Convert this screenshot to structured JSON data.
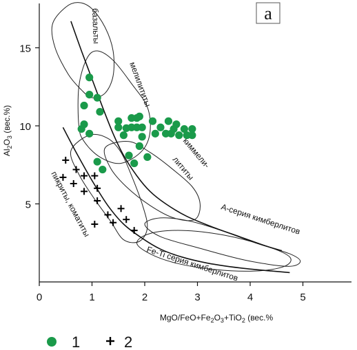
{
  "chart_data": {
    "type": "scatter",
    "panel_label": "а",
    "ylabel_parts": [
      "Al",
      "2",
      "O",
      "3",
      " (вес.%)"
    ],
    "xlabel_parts": [
      "MgO/FeO+Fe",
      "2",
      "O",
      "3",
      "+TiO",
      "2",
      " (вес.%"
    ],
    "xlim": [
      0,
      5.5
    ],
    "ylim": [
      0,
      17.8
    ],
    "xticks": [
      0,
      1,
      2,
      3,
      4,
      5
    ],
    "yticks": [
      5,
      10,
      15
    ],
    "field_labels": [
      "базальты",
      "мелилититы",
      "киммели-",
      "лититы",
      "А-серия кимберлитов",
      "Fe-Ti серия кимберлитов",
      "пикриты, коматиты"
    ],
    "series": [
      {
        "name": "1",
        "marker": "circle",
        "color": "#1a9a4a",
        "points": [
          [
            0.95,
            13.1
          ],
          [
            0.95,
            12
          ],
          [
            0.85,
            11.3
          ],
          [
            1.1,
            11.8
          ],
          [
            1.15,
            10.9
          ],
          [
            0.85,
            10.1
          ],
          [
            0.8,
            9.8
          ],
          [
            0.95,
            9.5
          ],
          [
            1.1,
            7.7
          ],
          [
            1.2,
            7.2
          ],
          [
            1.5,
            10.3
          ],
          [
            1.5,
            9.9
          ],
          [
            1.6,
            9.4
          ],
          [
            1.65,
            9.85
          ],
          [
            1.75,
            10.5
          ],
          [
            1.75,
            9.9
          ],
          [
            1.85,
            10.5
          ],
          [
            1.85,
            9.9
          ],
          [
            1.9,
            10.6
          ],
          [
            1.95,
            9.9
          ],
          [
            1.95,
            9.3
          ],
          [
            1.9,
            8.7
          ],
          [
            1.7,
            8.1
          ],
          [
            1.8,
            7.6
          ],
          [
            2.05,
            8
          ],
          [
            2.15,
            10.3
          ],
          [
            2.2,
            9.5
          ],
          [
            2.3,
            9.9
          ],
          [
            2.4,
            9.5
          ],
          [
            2.45,
            10.3
          ],
          [
            2.5,
            9.5
          ],
          [
            2.55,
            9.8
          ],
          [
            2.6,
            10.1
          ],
          [
            2.65,
            9.4
          ],
          [
            2.75,
            9.8
          ],
          [
            2.8,
            9.4
          ],
          [
            2.9,
            9.8
          ],
          [
            2.9,
            9.4
          ]
        ]
      },
      {
        "name": "2",
        "marker": "plus",
        "color": "#000000",
        "points": [
          [
            0.5,
            7.8
          ],
          [
            0.45,
            6.7
          ],
          [
            0.7,
            7.2
          ],
          [
            0.65,
            6.3
          ],
          [
            0.85,
            6.8
          ],
          [
            0.85,
            5.8
          ],
          [
            1.05,
            6.8
          ],
          [
            1.1,
            6.0
          ],
          [
            1.1,
            5.2
          ],
          [
            1.3,
            4.3
          ],
          [
            1.55,
            4.7
          ],
          [
            1.65,
            4.0
          ],
          [
            1.05,
            3.7
          ],
          [
            1.4,
            3.8
          ],
          [
            1.8,
            3.3
          ]
        ]
      }
    ],
    "boundary_lines": [
      [
        [
          0.6,
          16.7
        ],
        [
          0.8,
          14.8
        ],
        [
          1.0,
          13.0
        ],
        [
          1.2,
          11.2
        ],
        [
          1.4,
          9.5
        ],
        [
          1.6,
          8.1
        ],
        [
          1.85,
          6.8
        ],
        [
          2.1,
          5.8
        ],
        [
          2.4,
          5.0
        ],
        [
          2.8,
          4.2
        ],
        [
          3.3,
          3.5
        ],
        [
          3.8,
          2.9
        ],
        [
          4.3,
          2.3
        ],
        [
          4.6,
          2.0
        ]
      ],
      [
        [
          0.45,
          9.9
        ],
        [
          0.7,
          8.3
        ],
        [
          1.0,
          6.5
        ],
        [
          1.3,
          4.9
        ],
        [
          1.6,
          3.7
        ],
        [
          1.95,
          2.8
        ],
        [
          2.3,
          2.1
        ],
        [
          2.7,
          1.6
        ],
        [
          3.2,
          1.2
        ],
        [
          3.8,
          0.9
        ],
        [
          4.4,
          0.7
        ],
        [
          4.75,
          0.6
        ]
      ]
    ],
    "fields": [
      {
        "label": "базальты",
        "outline": [
          [
            0.3,
            15.0
          ],
          [
            0.25,
            16.5
          ],
          [
            0.5,
            17.6
          ],
          [
            0.75,
            17.9
          ],
          [
            1.0,
            17.5
          ],
          [
            1.25,
            16.3
          ],
          [
            1.4,
            14.8
          ],
          [
            1.4,
            13.2
          ],
          [
            1.25,
            12.1
          ],
          [
            1.0,
            11.8
          ],
          [
            0.8,
            12.3
          ],
          [
            0.55,
            13.3
          ]
        ]
      },
      {
        "label": "мелилититы",
        "outline": [
          [
            0.75,
            10.0
          ],
          [
            0.75,
            12.5
          ],
          [
            0.9,
            14.3
          ],
          [
            1.1,
            14.8
          ],
          [
            1.4,
            14.2
          ],
          [
            1.75,
            12.7
          ],
          [
            2.05,
            11.2
          ],
          [
            2.1,
            9.6
          ],
          [
            1.95,
            8.4
          ],
          [
            1.55,
            7.6
          ],
          [
            1.15,
            8.0
          ],
          [
            0.85,
            9.0
          ]
        ]
      },
      {
        "label": "киммели-лититы",
        "outline": [
          [
            1.25,
            8.6
          ],
          [
            1.7,
            9.0
          ],
          [
            2.1,
            8.3
          ],
          [
            2.5,
            7.3
          ],
          [
            2.9,
            6.1
          ],
          [
            3.05,
            5.0
          ],
          [
            2.95,
            4.0
          ],
          [
            2.55,
            4.1
          ],
          [
            2.1,
            4.9
          ],
          [
            1.65,
            6.1
          ],
          [
            1.35,
            7.3
          ]
        ]
      },
      {
        "label": "А-серия кимберлитов",
        "outline": [
          [
            2.0,
            3.7
          ],
          [
            2.3,
            4.1
          ],
          [
            2.85,
            3.9
          ],
          [
            3.45,
            3.3
          ],
          [
            4.1,
            2.5
          ],
          [
            4.75,
            1.8
          ],
          [
            4.95,
            1.3
          ],
          [
            4.7,
            1.0
          ],
          [
            3.9,
            1.4
          ],
          [
            3.0,
            2.2
          ],
          [
            2.3,
            2.9
          ]
        ]
      },
      {
        "label": "Fe-Ti серия кимберлитов",
        "outline": [
          [
            1.85,
            2.5
          ],
          [
            2.1,
            3.1
          ],
          [
            2.7,
            3.3
          ],
          [
            3.5,
            3.0
          ],
          [
            4.3,
            2.3
          ],
          [
            4.75,
            1.6
          ],
          [
            4.65,
            1.0
          ],
          [
            4.1,
            0.7
          ],
          [
            3.3,
            0.8
          ],
          [
            2.6,
            1.2
          ],
          [
            2.1,
            1.8
          ]
        ]
      },
      {
        "label": "пикриты, коматиты",
        "outline": [
          [
            0.6,
            8.4
          ],
          [
            0.95,
            9.4
          ],
          [
            1.3,
            9.2
          ],
          [
            1.55,
            8.3
          ],
          [
            1.75,
            6.8
          ],
          [
            1.95,
            5.0
          ],
          [
            2.05,
            3.5
          ],
          [
            1.9,
            2.6
          ],
          [
            1.6,
            2.7
          ],
          [
            1.35,
            3.9
          ],
          [
            1.05,
            5.3
          ],
          [
            0.75,
            6.9
          ]
        ]
      }
    ]
  }
}
